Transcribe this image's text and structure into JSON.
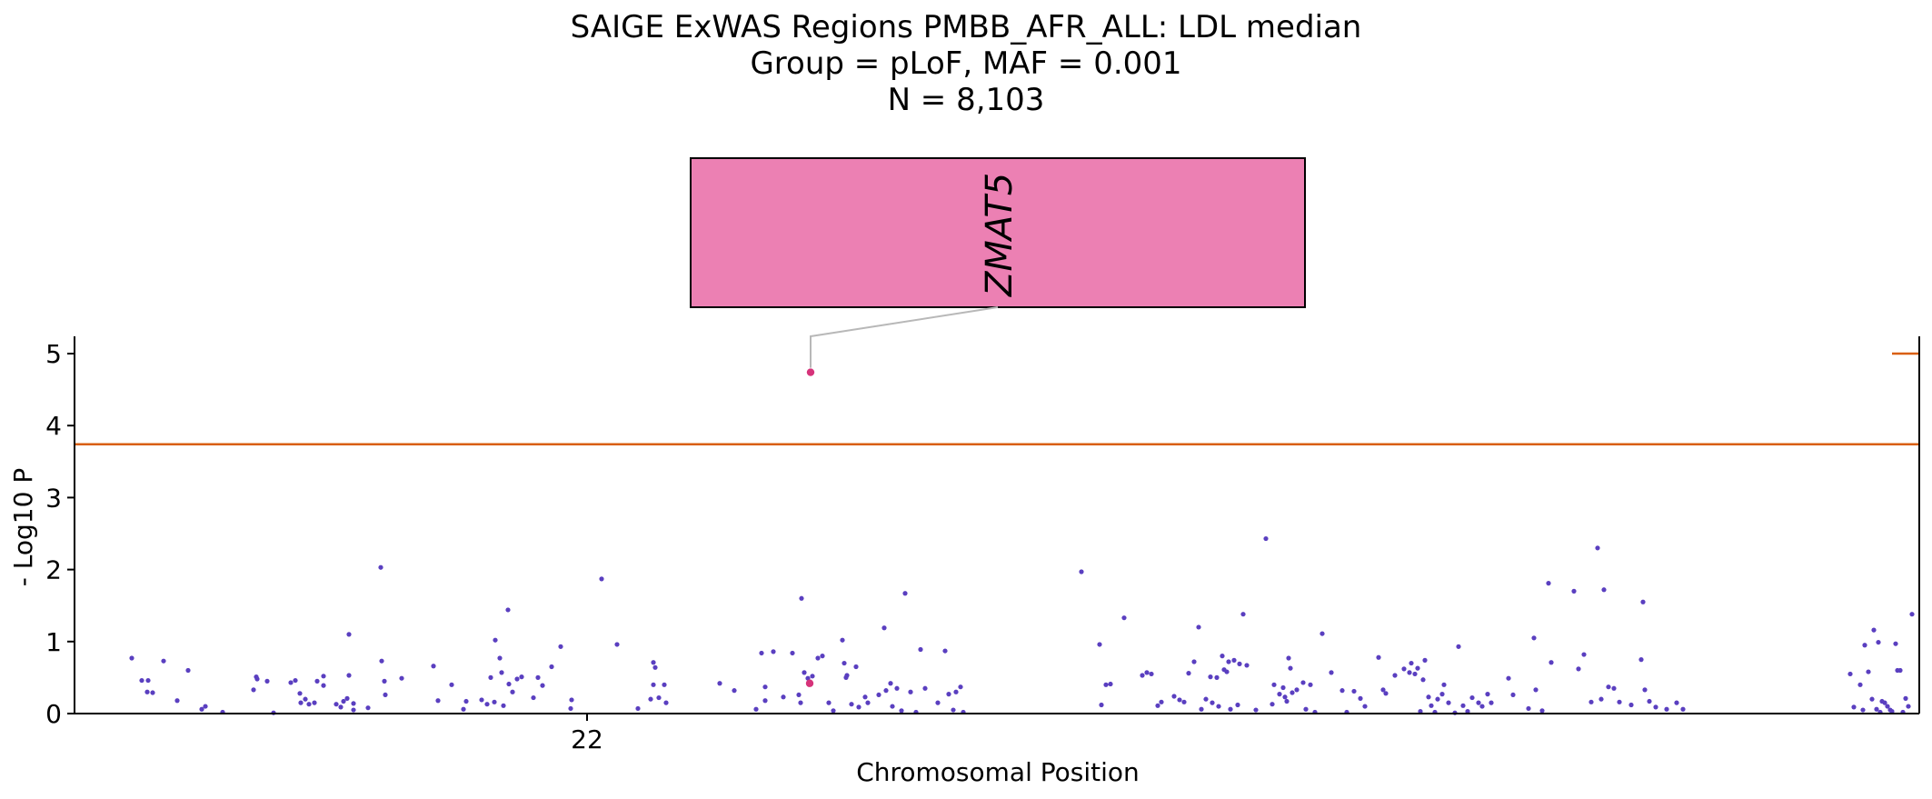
{
  "chart_data": {
    "type": "scatter",
    "title_lines": [
      "SAIGE ExWAS Regions PMBB_AFR_ALL: LDL median",
      "Group = pLoF, MAF = 0.001",
      "N = 8,103"
    ],
    "xlabel": "Chromosomal Position",
    "ylabel": "- Log10 P",
    "ylim": [
      0,
      5.25
    ],
    "y_ticks": [
      "0",
      "1",
      "2",
      "3",
      "4",
      "5"
    ],
    "x_ticks": [
      {
        "label": "22",
        "x": 564
      }
    ],
    "xlim": [
      0,
      2030
    ],
    "threshold": 3.74,
    "threshold_secondary": 5.0,
    "colors": {
      "point": "#5a3fc0",
      "highlight": "#d6337a",
      "threshold": "#d95f0e",
      "annotation_fill": "#ec80b3",
      "connector": "#b8b8b8"
    },
    "annotations": [
      {
        "gene": "ZMAT5",
        "x": 810,
        "y": 4.74
      }
    ],
    "highlight_points": [
      [
        810,
        4.74
      ],
      [
        809,
        0.42
      ]
    ],
    "points": [
      [
        63,
        0.77
      ],
      [
        74,
        0.46
      ],
      [
        81,
        0.46
      ],
      [
        80,
        0.3
      ],
      [
        86,
        0.29
      ],
      [
        98,
        0.73
      ],
      [
        113,
        0.18
      ],
      [
        125,
        0.6
      ],
      [
        140,
        0.06
      ],
      [
        144,
        0.1
      ],
      [
        163,
        0.02
      ],
      [
        197,
        0.33
      ],
      [
        200,
        0.51
      ],
      [
        201,
        0.48
      ],
      [
        212,
        0.45
      ],
      [
        219,
        0.01
      ],
      [
        238,
        0.43
      ],
      [
        243,
        0.46
      ],
      [
        248,
        0.28
      ],
      [
        249,
        0.15
      ],
      [
        254,
        0.2
      ],
      [
        258,
        0.13
      ],
      [
        264,
        0.15
      ],
      [
        267,
        0.45
      ],
      [
        274,
        0.52
      ],
      [
        274,
        0.39
      ],
      [
        288,
        0.13
      ],
      [
        293,
        0.09
      ],
      [
        296,
        0.17
      ],
      [
        300,
        0.21
      ],
      [
        302,
        1.1
      ],
      [
        302,
        0.53
      ],
      [
        307,
        0.14
      ],
      [
        307,
        0.05
      ],
      [
        323,
        0.08
      ],
      [
        337,
        2.03
      ],
      [
        338,
        0.73
      ],
      [
        341,
        0.45
      ],
      [
        342,
        0.26
      ],
      [
        360,
        0.49
      ],
      [
        395,
        0.66
      ],
      [
        400,
        0.18
      ],
      [
        415,
        0.4
      ],
      [
        428,
        0.06
      ],
      [
        431,
        0.17
      ],
      [
        448,
        0.19
      ],
      [
        454,
        0.13
      ],
      [
        458,
        0.5
      ],
      [
        462,
        0.16
      ],
      [
        463,
        1.02
      ],
      [
        468,
        0.77
      ],
      [
        470,
        0.57
      ],
      [
        472,
        0.11
      ],
      [
        477,
        1.44
      ],
      [
        482,
        0.3
      ],
      [
        478,
        0.41
      ],
      [
        487,
        0.48
      ],
      [
        492,
        0.51
      ],
      [
        505,
        0.22
      ],
      [
        510,
        0.5
      ],
      [
        515,
        0.39
      ],
      [
        525,
        0.65
      ],
      [
        535,
        0.93
      ],
      [
        546,
        0.07
      ],
      [
        547,
        0.19
      ],
      [
        580,
        1.87
      ],
      [
        597,
        0.96
      ],
      [
        620,
        0.07
      ],
      [
        634,
        0.2
      ],
      [
        637,
        0.4
      ],
      [
        637,
        0.71
      ],
      [
        639,
        0.64
      ],
      [
        643,
        0.22
      ],
      [
        649,
        0.4
      ],
      [
        651,
        0.15
      ],
      [
        710,
        0.42
      ],
      [
        726,
        0.32
      ],
      [
        750,
        0.06
      ],
      [
        756,
        0.84
      ],
      [
        760,
        0.18
      ],
      [
        760,
        0.37
      ],
      [
        769,
        0.86
      ],
      [
        780,
        0.23
      ],
      [
        790,
        0.84
      ],
      [
        799,
        0.15
      ],
      [
        797,
        0.26
      ],
      [
        800,
        1.6
      ],
      [
        803,
        0.57
      ],
      [
        807,
        0.49
      ],
      [
        812,
        0.52
      ],
      [
        818,
        0.77
      ],
      [
        823,
        0.8
      ],
      [
        830,
        0.15
      ],
      [
        835,
        0.04
      ],
      [
        845,
        1.02
      ],
      [
        847,
        0.7
      ],
      [
        850,
        0.53
      ],
      [
        849,
        0.5
      ],
      [
        855,
        0.13
      ],
      [
        860,
        0.65
      ],
      [
        863,
        0.09
      ],
      [
        870,
        0.23
      ],
      [
        873,
        0.15
      ],
      [
        885,
        0.26
      ],
      [
        891,
        1.19
      ],
      [
        893,
        0.32
      ],
      [
        898,
        0.42
      ],
      [
        900,
        0.1
      ],
      [
        905,
        0.35
      ],
      [
        910,
        0.04
      ],
      [
        914,
        1.67
      ],
      [
        920,
        0.3
      ],
      [
        926,
        0.02
      ],
      [
        931,
        0.89
      ],
      [
        936,
        0.35
      ],
      [
        950,
        0.15
      ],
      [
        958,
        0.87
      ],
      [
        962,
        0.27
      ],
      [
        967,
        0.05
      ],
      [
        970,
        0.3
      ],
      [
        975,
        0.37
      ],
      [
        978,
        0.02
      ],
      [
        1108,
        1.97
      ],
      [
        1128,
        0.96
      ],
      [
        1130,
        0.12
      ],
      [
        1135,
        0.4
      ],
      [
        1140,
        0.41
      ],
      [
        1155,
        1.33
      ],
      [
        1175,
        0.53
      ],
      [
        1180,
        0.57
      ],
      [
        1185,
        0.55
      ],
      [
        1192,
        0.11
      ],
      [
        1196,
        0.16
      ],
      [
        1210,
        0.24
      ],
      [
        1216,
        0.19
      ],
      [
        1221,
        0.16
      ],
      [
        1226,
        0.56
      ],
      [
        1232,
        0.72
      ],
      [
        1237,
        1.2
      ],
      [
        1240,
        0.06
      ],
      [
        1245,
        0.2
      ],
      [
        1250,
        0.51
      ],
      [
        1252,
        0.15
      ],
      [
        1257,
        0.5
      ],
      [
        1259,
        0.1
      ],
      [
        1263,
        0.8
      ],
      [
        1265,
        0.61
      ],
      [
        1268,
        0.58
      ],
      [
        1270,
        0.72
      ],
      [
        1272,
        0.06
      ],
      [
        1276,
        0.74
      ],
      [
        1280,
        0.12
      ],
      [
        1282,
        0.69
      ],
      [
        1286,
        1.38
      ],
      [
        1290,
        0.67
      ],
      [
        1300,
        0.05
      ],
      [
        1311,
        2.43
      ],
      [
        1318,
        0.13
      ],
      [
        1320,
        0.4
      ],
      [
        1326,
        0.27
      ],
      [
        1330,
        0.36
      ],
      [
        1332,
        0.23
      ],
      [
        1334,
        0.17
      ],
      [
        1336,
        0.77
      ],
      [
        1338,
        0.63
      ],
      [
        1340,
        0.29
      ],
      [
        1345,
        0.33
      ],
      [
        1352,
        0.43
      ],
      [
        1355,
        0.06
      ],
      [
        1360,
        0.4
      ],
      [
        1365,
        0.02
      ],
      [
        1373,
        1.11
      ],
      [
        1383,
        0.57
      ],
      [
        1395,
        0.32
      ],
      [
        1400,
        0.02
      ],
      [
        1408,
        0.31
      ],
      [
        1415,
        0.21
      ],
      [
        1420,
        0.1
      ],
      [
        1435,
        0.78
      ],
      [
        1440,
        0.33
      ],
      [
        1443,
        0.28
      ],
      [
        1453,
        0.53
      ],
      [
        1463,
        0.62
      ],
      [
        1469,
        0.57
      ],
      [
        1471,
        0.7
      ],
      [
        1475,
        0.55
      ],
      [
        1478,
        0.63
      ],
      [
        1481,
        0.03
      ],
      [
        1484,
        0.47
      ],
      [
        1486,
        0.74
      ],
      [
        1490,
        0.23
      ],
      [
        1493,
        0.11
      ],
      [
        1497,
        0.02
      ],
      [
        1500,
        0.2
      ],
      [
        1505,
        0.27
      ],
      [
        1507,
        0.4
      ],
      [
        1512,
        0.15
      ],
      [
        1519,
        0.01
      ],
      [
        1523,
        0.93
      ],
      [
        1528,
        0.11
      ],
      [
        1533,
        0.03
      ],
      [
        1538,
        0.22
      ],
      [
        1545,
        0.15
      ],
      [
        1549,
        0.1
      ],
      [
        1555,
        0.27
      ],
      [
        1559,
        0.15
      ],
      [
        1578,
        0.49
      ],
      [
        1583,
        0.26
      ],
      [
        1600,
        0.07
      ],
      [
        1606,
        1.05
      ],
      [
        1608,
        0.33
      ],
      [
        1615,
        0.04
      ],
      [
        1622,
        1.81
      ],
      [
        1625,
        0.71
      ],
      [
        1650,
        1.7
      ],
      [
        1655,
        0.62
      ],
      [
        1661,
        0.82
      ],
      [
        1669,
        0.16
      ],
      [
        1676,
        2.3
      ],
      [
        1680,
        0.2
      ],
      [
        1683,
        1.72
      ],
      [
        1688,
        0.37
      ],
      [
        1694,
        0.35
      ],
      [
        1700,
        0.16
      ],
      [
        1713,
        0.12
      ],
      [
        1726,
        1.55
      ],
      [
        1724,
        0.75
      ],
      [
        1728,
        0.33
      ],
      [
        1733,
        0.17
      ],
      [
        1740,
        0.09
      ],
      [
        1752,
        0.06
      ],
      [
        1763,
        0.15
      ],
      [
        1770,
        0.06
      ],
      [
        1954,
        0.55
      ],
      [
        1958,
        0.09
      ],
      [
        1965,
        0.4
      ],
      [
        1968,
        0.05
      ],
      [
        1970,
        0.95
      ],
      [
        1974,
        0.58
      ],
      [
        1978,
        0.2
      ],
      [
        1980,
        1.16
      ],
      [
        1983,
        0.06
      ],
      [
        1985,
        0.99
      ],
      [
        1987,
        0.02
      ],
      [
        1989,
        0.17
      ],
      [
        1992,
        0.15
      ],
      [
        1995,
        0.1
      ],
      [
        1998,
        0.05
      ],
      [
        2000,
        0.03
      ],
      [
        2004,
        0.97
      ],
      [
        2006,
        0.6
      ],
      [
        2009,
        0.6
      ],
      [
        2012,
        0.02
      ],
      [
        2015,
        0.21
      ],
      [
        2018,
        0.1
      ],
      [
        2022,
        1.38
      ]
    ]
  }
}
